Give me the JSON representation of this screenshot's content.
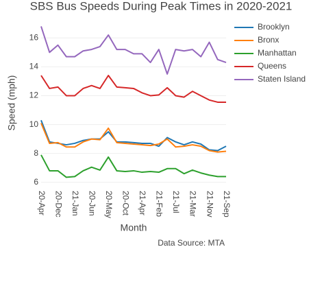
{
  "chart_data": {
    "type": "line",
    "title": "SBS Bus Speeds During Peak Times in 2020-2021",
    "x_label": "Month",
    "y_label": "Speed (mph)",
    "annotation": "Data Source: MTA",
    "categories": [
      "20-Apr",
      null,
      "20-Dec",
      null,
      "21-Jan",
      null,
      "20-Jun",
      null,
      "20-May",
      null,
      "20-Oct",
      null,
      "21-Apr",
      null,
      "21-Feb",
      null,
      "21-Jul",
      null,
      "21-Mar",
      null,
      "21-Nov",
      null,
      "21-Sep"
    ],
    "series": [
      {
        "name": "Brooklyn",
        "color": "#1f77b4",
        "values": [
          10.3,
          8.8,
          8.7,
          8.6,
          8.7,
          8.9,
          9.0,
          9.0,
          9.5,
          8.8,
          8.8,
          8.75,
          8.7,
          8.7,
          8.5,
          9.1,
          8.8,
          8.6,
          8.8,
          8.65,
          8.25,
          8.2,
          8.5
        ]
      },
      {
        "name": "Bronx",
        "color": "#ff7f0e",
        "values": [
          10.1,
          8.7,
          8.75,
          8.45,
          8.45,
          8.8,
          9.0,
          8.95,
          9.75,
          8.75,
          8.7,
          8.65,
          8.6,
          8.55,
          8.65,
          9.0,
          8.45,
          8.5,
          8.6,
          8.5,
          8.2,
          8.1,
          8.15
        ]
      },
      {
        "name": "Manhattan",
        "color": "#2ca02c",
        "values": [
          7.9,
          6.8,
          6.8,
          6.35,
          6.4,
          6.8,
          7.05,
          6.85,
          7.75,
          6.8,
          6.75,
          6.8,
          6.7,
          6.75,
          6.7,
          6.95,
          6.95,
          6.6,
          6.85,
          6.65,
          6.5,
          6.4,
          6.4
        ]
      },
      {
        "name": "Queens",
        "color": "#d62728",
        "values": [
          13.4,
          12.5,
          12.6,
          12.0,
          12.0,
          12.5,
          12.7,
          12.5,
          13.4,
          12.6,
          12.55,
          12.5,
          12.2,
          12.0,
          12.05,
          12.55,
          12.0,
          11.9,
          12.3,
          12.0,
          11.7,
          11.55,
          11.55
        ]
      },
      {
        "name": "Staten Island",
        "color": "#9467bd",
        "values": [
          16.8,
          15.0,
          15.5,
          14.7,
          14.7,
          15.1,
          15.2,
          15.4,
          16.2,
          15.2,
          15.2,
          14.9,
          14.9,
          14.3,
          15.2,
          13.5,
          15.2,
          15.1,
          15.2,
          14.7,
          15.7,
          14.5,
          14.3
        ]
      }
    ],
    "ylim": [
      5.8,
      17.2
    ],
    "yticks": [
      6,
      8,
      10,
      12,
      14,
      16
    ],
    "grid": true,
    "legend": "top-right"
  }
}
